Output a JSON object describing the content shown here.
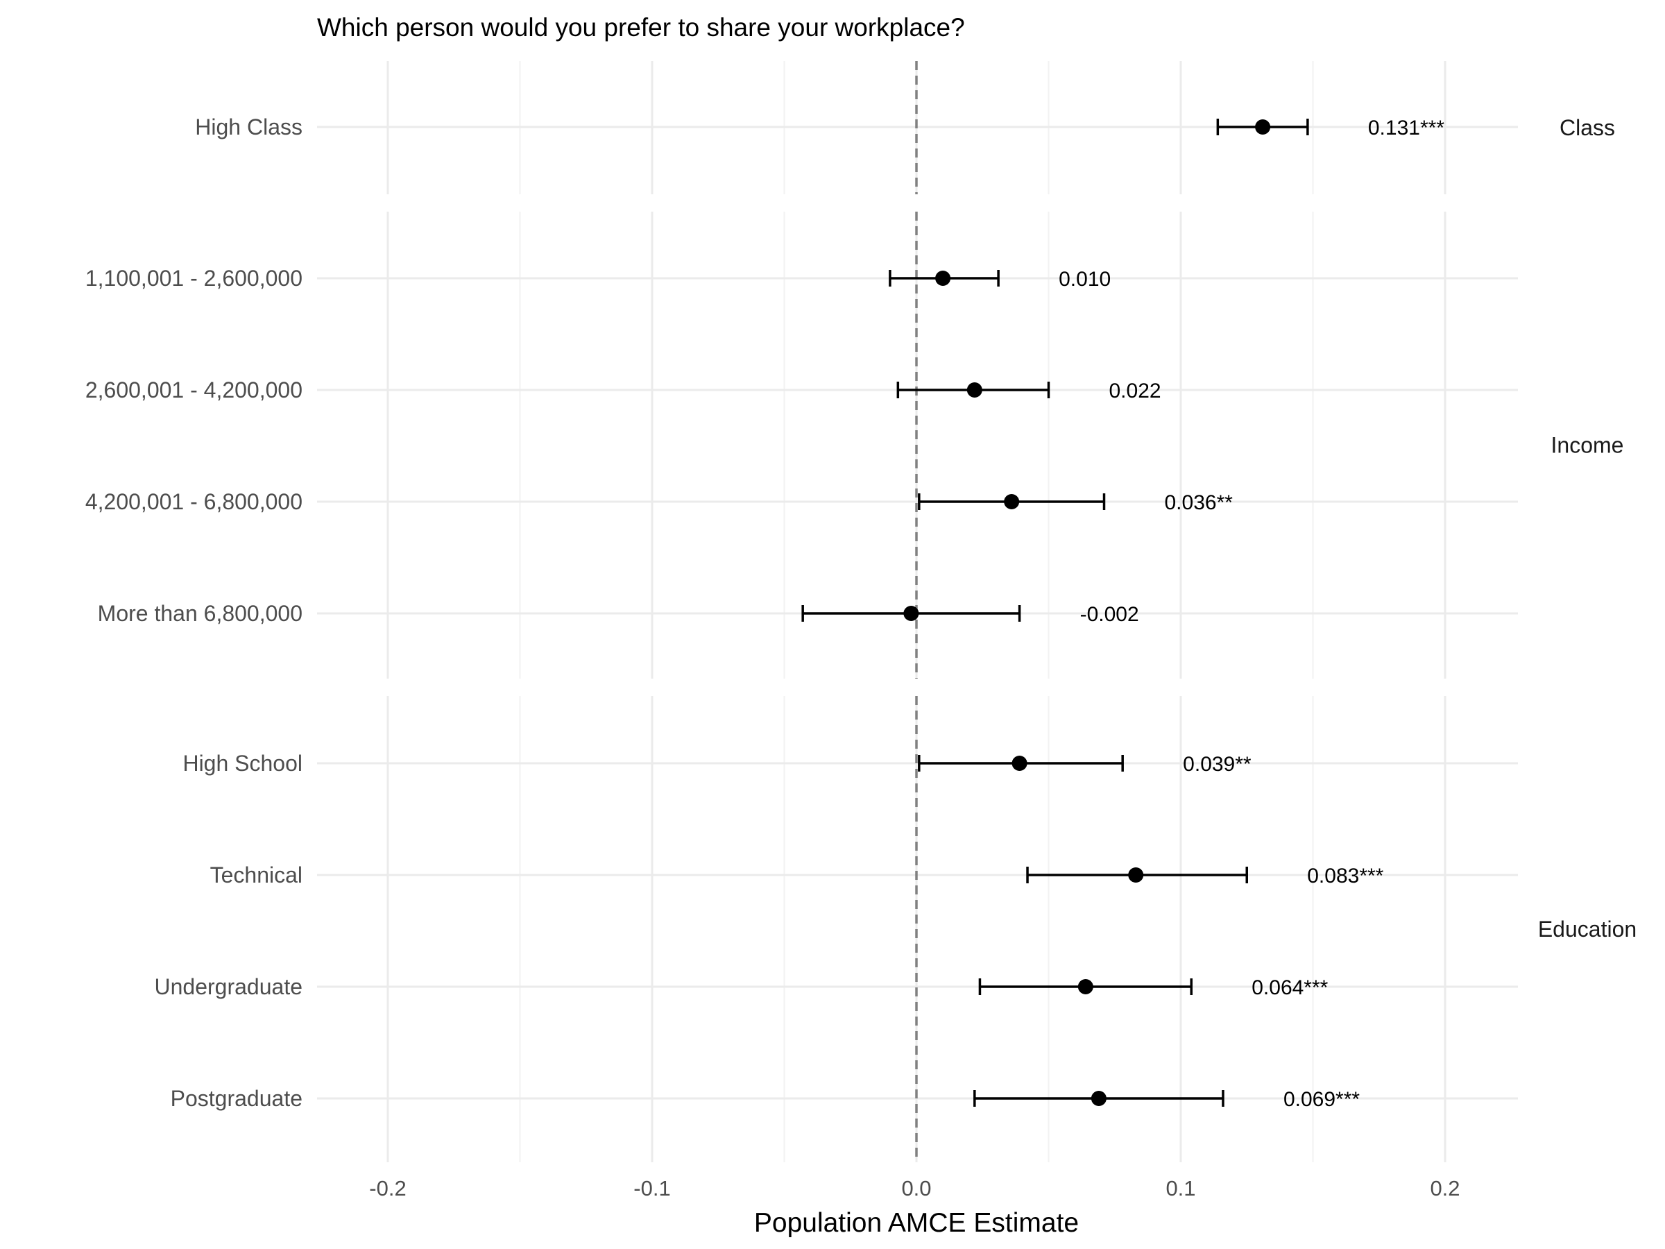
{
  "chart_data": {
    "type": "scatter",
    "subtype": "coefficient plot with 95% CI error bars, faceted",
    "title": "Which person would you prefer to share your workplace?",
    "xlabel": "Population AMCE Estimate",
    "ylabel": "",
    "xlim": [
      -0.23,
      0.23
    ],
    "x_ticks": [
      "-0.2",
      "-0.1",
      "0.0",
      "0.1",
      "0.2"
    ],
    "x_tick_values": [
      -0.2,
      -0.1,
      0.0,
      0.1,
      0.2
    ],
    "reference_line": 0.0,
    "grid": true,
    "marker_color": "#000000",
    "reference_line_color": "#808080",
    "facets": [
      {
        "name": "Class",
        "rows": [
          {
            "label": "High Class",
            "estimate": 0.131,
            "ci_low": 0.114,
            "ci_high": 0.148,
            "annotation": "0.131***"
          }
        ]
      },
      {
        "name": "Income",
        "rows": [
          {
            "label": "1,100,001 - 2,600,000",
            "estimate": 0.01,
            "ci_low": -0.01,
            "ci_high": 0.031,
            "annotation": "0.010"
          },
          {
            "label": "2,600,001 - 4,200,000",
            "estimate": 0.022,
            "ci_low": -0.007,
            "ci_high": 0.05,
            "annotation": "0.022"
          },
          {
            "label": "4,200,001 - 6,800,000",
            "estimate": 0.036,
            "ci_low": 0.001,
            "ci_high": 0.071,
            "annotation": "0.036**"
          },
          {
            "label": "More than 6,800,000",
            "estimate": -0.002,
            "ci_low": -0.043,
            "ci_high": 0.039,
            "annotation": "-0.002"
          }
        ]
      },
      {
        "name": "Education",
        "rows": [
          {
            "label": "High School",
            "estimate": 0.039,
            "ci_low": 0.001,
            "ci_high": 0.078,
            "annotation": "0.039**"
          },
          {
            "label": "Technical",
            "estimate": 0.083,
            "ci_low": 0.042,
            "ci_high": 0.125,
            "annotation": "0.083***"
          },
          {
            "label": "Undergraduate",
            "estimate": 0.064,
            "ci_low": 0.024,
            "ci_high": 0.104,
            "annotation": "0.064***"
          },
          {
            "label": "Postgraduate",
            "estimate": 0.069,
            "ci_low": 0.022,
            "ci_high": 0.116,
            "annotation": "0.069***"
          }
        ]
      }
    ]
  }
}
